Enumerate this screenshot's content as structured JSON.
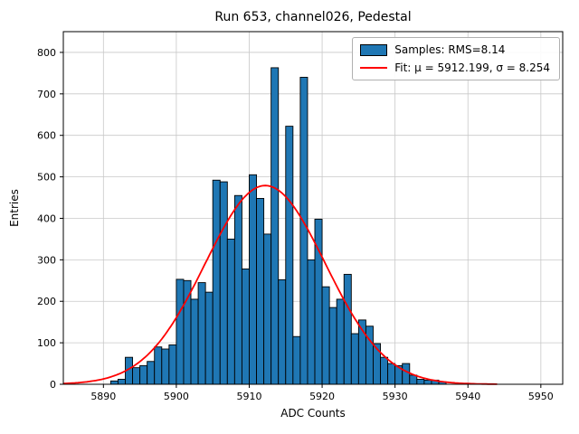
{
  "figure": {
    "title": "Run 653, channel026, Pedestal",
    "xlabel": "ADC Counts",
    "ylabel": "Entries"
  },
  "legend": {
    "samples_label": "Samples: RMS=8.14",
    "fit_label": "Fit: μ = 5912.199, σ = 8.254"
  },
  "chart_data": {
    "type": "bar",
    "title": "Run 653, channel026, Pedestal",
    "xlabel": "ADC Counts",
    "ylabel": "Entries",
    "xlim": [
      5884.5,
      5953
    ],
    "ylim": [
      0,
      850
    ],
    "xticks": [
      5890,
      5900,
      5910,
      5920,
      5930,
      5940,
      5950
    ],
    "yticks": [
      0,
      100,
      200,
      300,
      400,
      500,
      600,
      700,
      800
    ],
    "grid": true,
    "legend_position": "upper right",
    "bar_color": "#1f77b4",
    "bar_edge_color": "#000000",
    "fit_color": "#ff0000",
    "grid_color": "#c8c8c8",
    "bin_width": 1,
    "bins_start": 5891,
    "values": [
      8,
      12,
      65,
      40,
      45,
      55,
      90,
      85,
      95,
      253,
      250,
      205,
      245,
      222,
      492,
      488,
      350,
      455,
      278,
      505,
      448,
      362,
      763,
      252,
      622,
      115,
      740,
      300,
      398,
      235,
      185,
      205,
      265,
      122,
      155,
      140,
      98,
      65,
      50,
      45,
      50,
      22,
      12,
      10,
      10,
      6
    ],
    "fit": {
      "mu": 5912.199,
      "sigma": 8.254,
      "rms": 8.14,
      "amplitude": 479,
      "x_start": 5884.5,
      "x_end": 5944
    },
    "legend_entries": [
      "Samples: RMS=8.14",
      "Fit: μ = 5912.199, σ = 8.254"
    ]
  }
}
